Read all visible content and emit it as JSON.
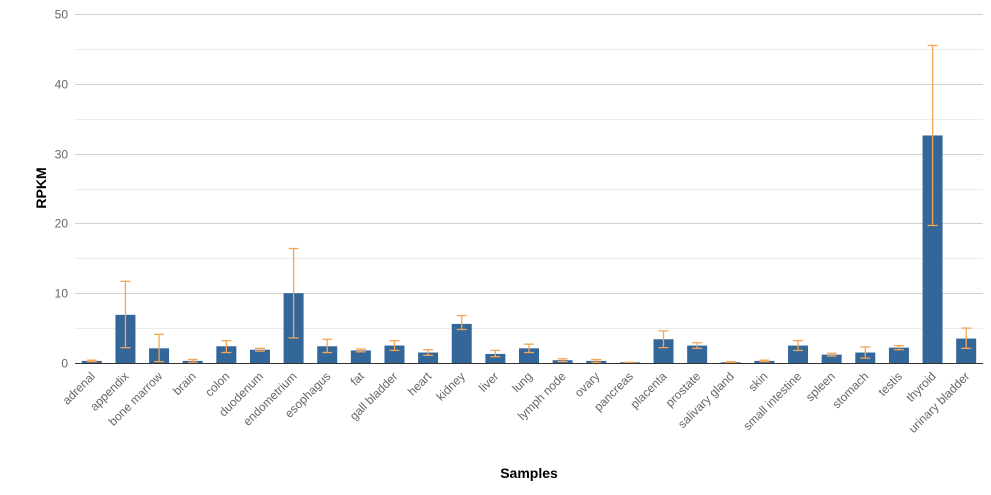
{
  "chart_data": {
    "type": "bar",
    "title": "",
    "xlabel": "Samples",
    "ylabel": "RPKM",
    "ylim": [
      0,
      50
    ],
    "yticks": [
      0,
      10,
      20,
      30,
      40,
      50
    ],
    "grid": true,
    "legend": "none",
    "colors": {
      "bar": "#336699",
      "error_bar": "#f5a556",
      "grid": "#d0d0d0",
      "minor_grid": "#ececec",
      "axis": "#333333"
    },
    "categories": [
      "adrenal",
      "appendix",
      "bone marrow",
      "brain",
      "colon",
      "duodenum",
      "endometrium",
      "esophagus",
      "fat",
      "gall bladder",
      "heart",
      "kidney",
      "liver",
      "lung",
      "lymph node",
      "ovary",
      "pancreas",
      "placenta",
      "prostate",
      "salivary gland",
      "skin",
      "small intestine",
      "spleen",
      "stomach",
      "testis",
      "thyroid",
      "urinary bladder"
    ],
    "series": [
      {
        "values": [
          0.3,
          6.9,
          2.1,
          0.3,
          2.4,
          1.9,
          10.0,
          2.4,
          1.8,
          2.5,
          1.5,
          5.6,
          1.3,
          2.1,
          0.4,
          0.3,
          0.1,
          3.4,
          2.5,
          0.1,
          0.3,
          2.5,
          1.2,
          1.5,
          2.2,
          32.6,
          3.5
        ],
        "error_low": [
          0.2,
          2.2,
          0.2,
          0.1,
          1.5,
          1.7,
          3.6,
          1.5,
          1.6,
          1.8,
          1.1,
          4.8,
          0.9,
          1.5,
          0.2,
          0.1,
          0.0,
          2.2,
          2.1,
          0.0,
          0.2,
          1.8,
          1.0,
          0.7,
          1.9,
          19.7,
          2.1
        ],
        "error_high": [
          0.4,
          11.7,
          4.1,
          0.5,
          3.2,
          2.1,
          16.4,
          3.4,
          2.0,
          3.2,
          1.9,
          6.8,
          1.8,
          2.7,
          0.6,
          0.5,
          0.1,
          4.6,
          2.9,
          0.2,
          0.4,
          3.2,
          1.4,
          2.3,
          2.5,
          45.5,
          5.0
        ]
      }
    ]
  }
}
